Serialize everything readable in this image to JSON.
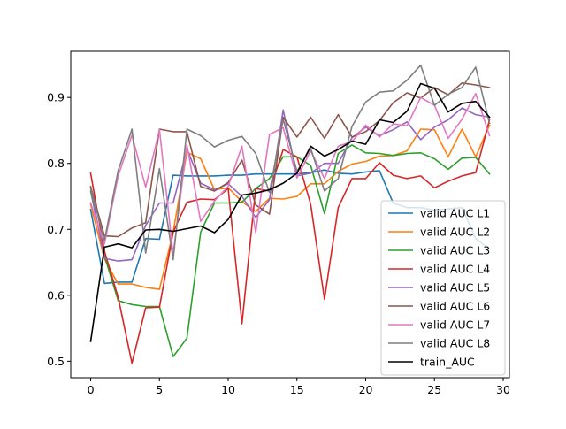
{
  "chart_data": {
    "type": "line",
    "title": "",
    "xlabel": "",
    "ylabel": "",
    "xlim": [
      -1.45,
      30.45
    ],
    "ylim": [
      0.475,
      0.97
    ],
    "xticks": [
      0,
      5,
      10,
      15,
      20,
      25,
      30
    ],
    "yticks": [
      0.5,
      0.6,
      0.7,
      0.8,
      0.9
    ],
    "xtick_labels": [
      "0",
      "5",
      "10",
      "15",
      "20",
      "25",
      "30"
    ],
    "ytick_labels": [
      "0.5",
      "0.6",
      "0.7",
      "0.8",
      "0.9"
    ],
    "grid": false,
    "legend_position": "lower-right",
    "x": [
      0,
      1,
      2,
      3,
      4,
      5,
      6,
      7,
      8,
      9,
      10,
      11,
      12,
      13,
      14,
      15,
      16,
      17,
      18,
      19,
      20,
      21,
      22,
      23,
      24,
      25,
      26,
      27,
      28,
      29
    ],
    "series": [
      {
        "name": "valid AUC L1",
        "color": "#1f77b4",
        "values": [
          0.73,
          0.618,
          0.62,
          0.62,
          0.686,
          0.685,
          0.782,
          0.781,
          0.781,
          0.781,
          0.782,
          0.782,
          0.784,
          0.784,
          0.784,
          0.784,
          0.786,
          0.79,
          0.785,
          0.784,
          0.787,
          0.789,
          0.74,
          0.733,
          0.733,
          0.729,
          0.731,
          0.733,
          0.686,
          0.67
        ]
      },
      {
        "name": "valid AUC L2",
        "color": "#ff7f0e",
        "values": [
          0.738,
          0.655,
          0.617,
          0.617,
          0.612,
          0.609,
          0.696,
          0.817,
          0.807,
          0.76,
          0.763,
          0.742,
          0.727,
          0.747,
          0.746,
          0.75,
          0.769,
          0.769,
          0.788,
          0.799,
          0.803,
          0.811,
          0.812,
          0.819,
          0.852,
          0.851,
          0.81,
          0.852,
          0.81,
          0.858
        ]
      },
      {
        "name": "valid AUC L3",
        "color": "#2ca02c",
        "values": [
          0.758,
          0.66,
          0.592,
          0.586,
          0.583,
          0.583,
          0.507,
          0.535,
          0.696,
          0.74,
          0.74,
          0.741,
          0.762,
          0.777,
          0.81,
          0.81,
          0.797,
          0.724,
          0.815,
          0.828,
          0.816,
          0.815,
          0.812,
          0.815,
          0.816,
          0.807,
          0.791,
          0.808,
          0.809,
          0.784
        ]
      },
      {
        "name": "valid AUC L4",
        "color": "#d62728",
        "values": [
          0.785,
          0.667,
          0.597,
          0.497,
          0.581,
          0.582,
          0.696,
          0.741,
          0.746,
          0.745,
          0.762,
          0.557,
          0.762,
          0.758,
          0.821,
          0.81,
          0.738,
          0.594,
          0.733,
          0.777,
          0.777,
          0.801,
          0.782,
          0.777,
          0.781,
          0.763,
          0.773,
          0.781,
          0.786,
          0.866
        ]
      },
      {
        "name": "valid AUC L5",
        "color": "#9467bd",
        "values": [
          0.763,
          0.656,
          0.652,
          0.654,
          0.706,
          0.74,
          0.74,
          0.822,
          0.77,
          0.76,
          0.769,
          0.75,
          0.718,
          0.745,
          0.881,
          0.781,
          0.785,
          0.8,
          0.8,
          0.839,
          0.855,
          0.842,
          0.851,
          0.863,
          0.836,
          0.855,
          0.866,
          0.884,
          0.874,
          0.87
        ]
      },
      {
        "name": "valid AUC L6",
        "color": "#8c564b",
        "values": [
          0.765,
          0.69,
          0.689,
          0.702,
          0.71,
          0.852,
          0.848,
          0.848,
          0.765,
          0.758,
          0.771,
          0.805,
          0.737,
          0.723,
          0.87,
          0.84,
          0.87,
          0.838,
          0.874,
          0.84,
          0.848,
          0.865,
          0.892,
          0.907,
          0.899,
          0.915,
          0.904,
          0.922,
          0.919,
          0.915
        ]
      },
      {
        "name": "valid AUC L7",
        "color": "#e377c2",
        "values": [
          0.74,
          0.678,
          0.781,
          0.843,
          0.764,
          0.851,
          0.662,
          0.828,
          0.712,
          0.743,
          0.765,
          0.826,
          0.695,
          0.844,
          0.854,
          0.778,
          0.819,
          0.777,
          0.826,
          0.833,
          0.858,
          0.84,
          0.86,
          0.857,
          0.9,
          0.888,
          0.838,
          0.867,
          0.906,
          0.842
        ]
      },
      {
        "name": "valid AUC L8",
        "color": "#7f7f7f",
        "values": [
          0.763,
          0.683,
          0.789,
          0.852,
          0.664,
          0.792,
          0.654,
          0.852,
          0.842,
          0.825,
          0.835,
          0.841,
          0.815,
          0.756,
          0.867,
          0.788,
          0.823,
          0.758,
          0.777,
          0.856,
          0.893,
          0.908,
          0.91,
          0.926,
          0.949,
          0.888,
          0.905,
          0.915,
          0.946,
          0.861
        ]
      },
      {
        "name": "train_AUC",
        "color": "#000000",
        "values": [
          0.53,
          0.673,
          0.678,
          0.672,
          0.699,
          0.7,
          0.697,
          0.701,
          0.705,
          0.695,
          0.715,
          0.752,
          0.755,
          0.76,
          0.77,
          0.785,
          0.826,
          0.811,
          0.821,
          0.834,
          0.829,
          0.866,
          0.862,
          0.879,
          0.921,
          0.914,
          0.878,
          0.891,
          0.894,
          0.87
        ]
      }
    ]
  }
}
